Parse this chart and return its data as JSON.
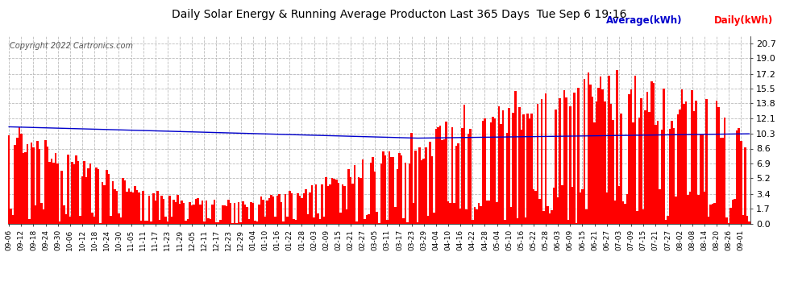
{
  "title": "Daily Solar Energy & Running Average Producton Last 365 Days  Tue Sep 6 19:16",
  "copyright": "Copyright 2022 Cartronics.com",
  "legend_avg": "Average(kWh)",
  "legend_daily": "Daily(kWh)",
  "yticks": [
    0.0,
    1.7,
    3.4,
    5.2,
    6.9,
    8.6,
    10.3,
    12.1,
    13.8,
    15.5,
    17.2,
    19.0,
    20.7
  ],
  "ylim": [
    0.0,
    21.5
  ],
  "bar_color": "#ff0000",
  "avg_line_color": "#0000cc",
  "bg_color": "#ffffff",
  "grid_color": "#bbbbbb",
  "title_color": "#000000",
  "avg_label_color": "#0000cc",
  "daily_label_color": "#ff0000",
  "copyright_color": "#555555",
  "figsize": [
    9.9,
    3.75
  ],
  "dpi": 100,
  "xtick_labels": [
    "09-06",
    "09-12",
    "09-18",
    "09-24",
    "09-30",
    "10-06",
    "10-12",
    "10-18",
    "10-24",
    "10-30",
    "11-05",
    "11-11",
    "11-17",
    "11-23",
    "11-29",
    "12-05",
    "12-11",
    "12-17",
    "12-23",
    "12-29",
    "01-04",
    "01-10",
    "01-16",
    "01-22",
    "01-28",
    "02-03",
    "02-09",
    "02-15",
    "02-21",
    "02-27",
    "03-05",
    "03-11",
    "03-17",
    "03-23",
    "03-29",
    "04-04",
    "04-10",
    "04-16",
    "04-22",
    "04-28",
    "05-04",
    "05-10",
    "05-16",
    "05-22",
    "05-28",
    "06-03",
    "06-09",
    "06-15",
    "06-21",
    "06-27",
    "07-03",
    "07-09",
    "07-15",
    "07-21",
    "07-27",
    "08-02",
    "08-08",
    "08-14",
    "08-20",
    "08-26",
    "09-01"
  ]
}
